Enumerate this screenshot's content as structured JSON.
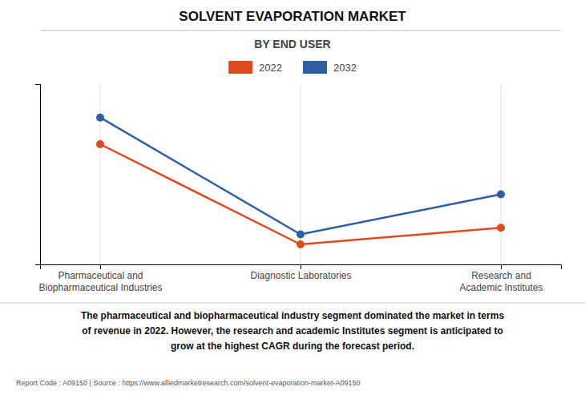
{
  "chart_data": {
    "type": "line",
    "title": "SOLVENT EVAPORATION MARKET",
    "subtitle": "BY END USER",
    "categories": [
      "Pharmaceutical and\nBiopharmaceutical Industries",
      "Diagnostic Laboratories",
      "Research and\nAcademic Institutes"
    ],
    "series": [
      {
        "name": "2022",
        "color": "#e04a1f",
        "marker": "circle",
        "values": [
          0.72,
          0.12,
          0.22
        ]
      },
      {
        "name": "2032",
        "color": "#2e5fa3",
        "marker": "circle",
        "values": [
          0.88,
          0.18,
          0.42
        ]
      }
    ],
    "ylim": [
      0,
      1.08
    ],
    "yticks": [],
    "grid": true,
    "tick_labels": "x",
    "legend": "top",
    "annotations": [
      "The pharmaceutical and biopharmaceutical industry segment dominated the market in terms\nof revenue in 2022. However, the research and academic Institutes segment is anticipated to\ngrow at the highest CAGR during the forecast period.",
      "Report Code : A09150  |  Source : https://www.alliedmarketresearch.com/solvent-evaporation-market-A09150"
    ]
  }
}
